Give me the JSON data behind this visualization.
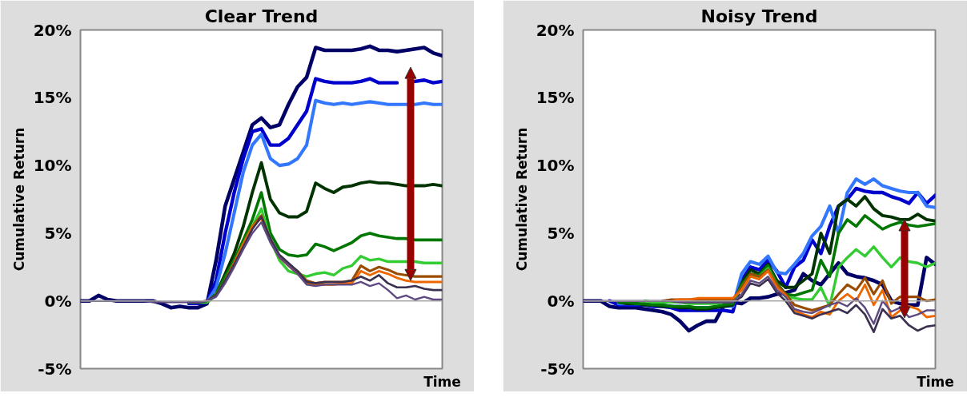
{
  "chart_data": [
    {
      "type": "line",
      "title": "Clear Trend",
      "xlabel": "Time",
      "ylabel": "Cumulative Return",
      "categories": [
        null,
        null,
        null,
        null,
        null,
        null,
        null,
        null,
        null,
        null,
        null,
        null,
        null,
        null,
        null,
        null,
        null,
        null,
        null,
        null,
        null,
        null,
        null,
        null,
        null,
        null,
        null,
        null,
        null,
        null,
        null,
        null,
        null,
        null,
        null,
        null,
        null,
        null,
        null,
        null,
        null
      ],
      "ylim": [
        -5,
        20
      ],
      "yticks": [
        {
          "value": -5,
          "label": "-5%"
        },
        {
          "value": 0,
          "label": "0%"
        },
        {
          "value": 5,
          "label": "5%"
        },
        {
          "value": 10,
          "label": "10%"
        },
        {
          "value": 15,
          "label": "15%"
        },
        {
          "value": 20,
          "label": "20%"
        }
      ],
      "tick_labels": "y",
      "line_style": "solid",
      "ref_lines": [
        {
          "axis": "y",
          "value": 0,
          "color": "#a6a6a6"
        }
      ],
      "series": [
        {
          "color": "#000066",
          "values": [
            0,
            0,
            0.4,
            0.1,
            0,
            0,
            0,
            0,
            0,
            -0.2,
            -0.5,
            -0.4,
            -0.5,
            -0.5,
            -0.2,
            3,
            7,
            9,
            11,
            13,
            13.5,
            12.8,
            13,
            14.5,
            15.8,
            16.5,
            18.7,
            18.5,
            18.5,
            18.5,
            18.5,
            18.6,
            18.8,
            18.5,
            18.5,
            18.4,
            18.5,
            18.6,
            18.7,
            18.3,
            18.1
          ]
        },
        {
          "color": "#0000cc",
          "values": [
            null,
            null,
            null,
            null,
            null,
            null,
            null,
            null,
            null,
            null,
            null,
            null,
            -0.2,
            -0.2,
            -0.1,
            1.5,
            5,
            8,
            10.5,
            12.5,
            12.7,
            11.5,
            11.5,
            12,
            13,
            14,
            16.4,
            16.2,
            16.1,
            16.1,
            16.1,
            16.2,
            16.4,
            16.1,
            16.1,
            16.1,
            null,
            16.2,
            16.3,
            16.1,
            16.2
          ]
        },
        {
          "color": "#3377ff",
          "values": [
            null,
            null,
            null,
            null,
            null,
            null,
            null,
            null,
            null,
            null,
            null,
            null,
            -0.1,
            -0.1,
            -0.1,
            1,
            3.5,
            6.5,
            9.5,
            11.5,
            12.3,
            10.5,
            10,
            10.1,
            10.5,
            11.5,
            14.8,
            14.6,
            14.5,
            14.6,
            14.5,
            14.6,
            14.7,
            14.6,
            14.5,
            14.5,
            14.5,
            14.5,
            14.6,
            14.5,
            14.5
          ]
        },
        {
          "color": "#003300",
          "values": [
            null,
            null,
            null,
            null,
            null,
            null,
            null,
            null,
            null,
            null,
            null,
            null,
            -0.1,
            -0.1,
            -0.1,
            0.5,
            2,
            3.5,
            5.5,
            8,
            10.2,
            7.5,
            6.5,
            6.2,
            6.2,
            6.6,
            8.7,
            8.3,
            8.0,
            8.4,
            8.5,
            8.7,
            8.8,
            8.7,
            8.7,
            8.6,
            8.5,
            8.5,
            8.5,
            8.6,
            8.5
          ]
        },
        {
          "color": "#007700",
          "values": [
            null,
            null,
            null,
            null,
            null,
            null,
            null,
            null,
            null,
            null,
            null,
            null,
            -0.1,
            -0.1,
            -0.1,
            0.5,
            1.8,
            3,
            4.5,
            6,
            8,
            5,
            3.8,
            3.4,
            3.3,
            3.4,
            4.2,
            4.0,
            3.7,
            4.0,
            4.3,
            4.8,
            5.0,
            4.8,
            4.7,
            4.6,
            4.6,
            4.5,
            4.5,
            4.5,
            4.5
          ]
        },
        {
          "color": "#33cc33",
          "values": [
            null,
            null,
            null,
            null,
            null,
            null,
            null,
            null,
            null,
            null,
            null,
            null,
            -0.1,
            -0.1,
            -0.1,
            0.4,
            1.5,
            2.8,
            4.2,
            5.5,
            6.8,
            4.5,
            3.0,
            2.2,
            2.0,
            1.8,
            2.0,
            2.1,
            1.9,
            2.4,
            2.6,
            3.3,
            3.0,
            3.1,
            2.9,
            2.9,
            2.9,
            2.9,
            2.8,
            2.8,
            2.8
          ]
        },
        {
          "color": "#994c00",
          "values": [
            null,
            null,
            null,
            null,
            null,
            null,
            null,
            null,
            null,
            null,
            null,
            null,
            -0.1,
            -0.1,
            0,
            0.4,
            1.5,
            2.8,
            4.2,
            5.5,
            6.3,
            4.5,
            3.3,
            2.7,
            2.2,
            1.5,
            1.3,
            1.4,
            1.4,
            1.4,
            1.5,
            2.6,
            2.2,
            2.5,
            2.3,
            2.0,
            1.9,
            1.8,
            1.8,
            1.8,
            1.8
          ]
        },
        {
          "color": "#ee6600",
          "values": [
            null,
            null,
            null,
            null,
            null,
            null,
            null,
            null,
            null,
            null,
            null,
            null,
            null,
            null,
            null,
            null,
            1.5,
            2.8,
            4.2,
            5.5,
            6.1,
            4.4,
            3.2,
            2.6,
            2.0,
            1.3,
            1.2,
            1.2,
            1.2,
            1.3,
            1.3,
            2.2,
            1.9,
            2.2,
            2.0,
            1.7,
            1.5,
            1.4,
            1.4,
            1.4,
            1.4
          ]
        },
        {
          "color": "#3c3050",
          "values": [
            null,
            null,
            null,
            null,
            null,
            null,
            null,
            null,
            null,
            null,
            null,
            null,
            -0.1,
            -0.1,
            0,
            0.4,
            1.5,
            2.7,
            4.0,
            5.3,
            6.2,
            4.6,
            3.4,
            2.8,
            2.2,
            1.4,
            1.3,
            1.4,
            1.4,
            1.4,
            1.5,
            1.8,
            1.5,
            1.9,
            1.3,
            1.0,
            1.0,
            1.1,
            0.9,
            0.8,
            0.8
          ]
        },
        {
          "color": "#5e4a80",
          "values": [
            0,
            0,
            0,
            0,
            0,
            0,
            0,
            0,
            -0.1,
            -0.1,
            -0.1,
            -0.1,
            -0.1,
            -0.1,
            0,
            0.3,
            1.3,
            2.5,
            3.8,
            5.0,
            5.8,
            4.3,
            3.2,
            2.6,
            2.0,
            1.2,
            1.1,
            1.2,
            1.2,
            1.2,
            1.2,
            1.4,
            1.1,
            1.3,
            0.8,
            0.2,
            0.4,
            0.1,
            0.3,
            0.1,
            0.1
          ]
        }
      ]
    },
    {
      "type": "line",
      "title": "Noisy Trend",
      "xlabel": "Time",
      "ylabel": "Cumulative Return",
      "categories": [
        null,
        null,
        null,
        null,
        null,
        null,
        null,
        null,
        null,
        null,
        null,
        null,
        null,
        null,
        null,
        null,
        null,
        null,
        null,
        null,
        null,
        null,
        null,
        null,
        null,
        null,
        null,
        null,
        null,
        null,
        null,
        null,
        null,
        null,
        null,
        null,
        null,
        null,
        null,
        null,
        null
      ],
      "ylim": [
        -5,
        20
      ],
      "yticks": [
        {
          "value": -5,
          "label": "-5%"
        },
        {
          "value": 0,
          "label": "0%"
        },
        {
          "value": 5,
          "label": "5%"
        },
        {
          "value": 10,
          "label": "10%"
        },
        {
          "value": 15,
          "label": "15%"
        },
        {
          "value": 20,
          "label": "20%"
        }
      ],
      "tick_labels": "y",
      "line_style": "solid",
      "ref_lines": [
        {
          "axis": "y",
          "value": 0,
          "color": "#a6a6a6"
        }
      ],
      "series": [
        {
          "color": "#000066",
          "values": [
            0,
            0,
            0,
            -0.4,
            -0.5,
            -0.5,
            -0.5,
            -0.6,
            -0.7,
            -0.8,
            -1.0,
            -1.5,
            -2.2,
            -1.8,
            -1.5,
            -1.5,
            -0.3,
            -0.1,
            -0.2,
            0.2,
            0.2,
            0.3,
            0.5,
            0.6,
            0.8,
            2.0,
            1.5,
            1.2,
            2.0,
            2.8,
            2.0,
            1.8,
            1.7,
            1.5,
            1.2,
            0.0,
            -0.2,
            -0.3,
            -0.3,
            3.2,
            2.7
          ]
        },
        {
          "color": "#0000cc",
          "values": [
            null,
            null,
            null,
            0,
            -0.3,
            -0.3,
            -0.3,
            -0.3,
            -0.4,
            -0.4,
            -0.5,
            -0.7,
            -0.7,
            -0.7,
            -0.7,
            -0.7,
            -0.7,
            -0.8,
            1.5,
            2.5,
            2.3,
            3.0,
            2.2,
            1.0,
            2.5,
            3.0,
            4.5,
            3.5,
            5.5,
            7.0,
            7.5,
            8.3,
            8.1,
            8.0,
            8.0,
            7.7,
            7.5,
            7.2,
            8.0,
            7.2,
            7.8
          ]
        },
        {
          "color": "#3377ff",
          "values": [
            null,
            null,
            null,
            null,
            -0.2,
            -0.2,
            -0.2,
            -0.3,
            -0.3,
            -0.3,
            -0.4,
            -0.4,
            -0.5,
            -0.5,
            -0.5,
            -0.5,
            -0.4,
            -0.4,
            2.0,
            2.9,
            2.7,
            3.3,
            2.1,
            2.0,
            2.7,
            3.5,
            4.8,
            5.5,
            7.0,
            5.0,
            8.0,
            9.0,
            8.6,
            9.0,
            8.5,
            8.3,
            8.1,
            8.0,
            8.0,
            7.0,
            6.9
          ]
        },
        {
          "color": "#003300",
          "values": [
            null,
            null,
            null,
            null,
            -0.1,
            -0.2,
            -0.2,
            -0.3,
            -0.3,
            -0.4,
            -0.4,
            -0.5,
            -0.5,
            -0.6,
            -0.6,
            -0.5,
            -0.4,
            -0.3,
            1.3,
            2.3,
            2.0,
            2.7,
            1.5,
            1.0,
            1.0,
            1.5,
            2.0,
            5.0,
            3.5,
            7.0,
            7.5,
            7.0,
            7.7,
            6.8,
            6.3,
            6.2,
            6.0,
            6.0,
            6.4,
            6.0,
            5.9
          ]
        },
        {
          "color": "#007700",
          "values": [
            null,
            null,
            null,
            null,
            -0.1,
            -0.1,
            -0.2,
            -0.2,
            -0.3,
            -0.3,
            -0.4,
            -0.4,
            -0.4,
            -0.5,
            -0.5,
            -0.4,
            -0.3,
            -0.2,
            1.2,
            2.0,
            1.9,
            2.6,
            1.3,
            0.5,
            0.4,
            0.6,
            0.8,
            3.0,
            1.8,
            5.0,
            6.0,
            5.5,
            6.3,
            5.8,
            5.3,
            5.6,
            5.8,
            5.6,
            5.5,
            5.6,
            5.7
          ]
        },
        {
          "color": "#33cc33",
          "values": [
            null,
            null,
            null,
            null,
            null,
            null,
            null,
            0,
            -0.1,
            -0.1,
            -0.1,
            -0.1,
            -0.2,
            -0.2,
            -0.2,
            -0.2,
            -0.1,
            0,
            1.0,
            1.9,
            1.8,
            2.4,
            1.2,
            0.3,
            0.2,
            0.1,
            0.1,
            1.0,
            -0.4,
            2.5,
            3.2,
            3.8,
            3.3,
            4.0,
            3.2,
            2.5,
            3.2,
            2.9,
            2.8,
            2.5,
            2.8
          ]
        },
        {
          "color": "#994c00",
          "values": [
            null,
            null,
            null,
            null,
            null,
            null,
            null,
            null,
            null,
            0,
            0.1,
            0.1,
            0.1,
            0.1,
            0.1,
            0.1,
            0.1,
            0.1,
            1.0,
            2.0,
            1.8,
            2.3,
            1.2,
            0.5,
            -0.3,
            -0.5,
            -0.7,
            -0.5,
            -0.3,
            0.5,
            1.2,
            0.8,
            1.7,
            0.5,
            1.5,
            -0.2,
            0.3,
            0.3,
            0.3,
            0.0,
            0.1
          ]
        },
        {
          "color": "#ee6600",
          "values": [
            null,
            null,
            null,
            null,
            null,
            null,
            null,
            null,
            null,
            null,
            0,
            0.1,
            0.1,
            0.2,
            0.2,
            0.2,
            0.2,
            0.2,
            0.8,
            1.8,
            1.6,
            2.2,
            1.0,
            0.4,
            -0.7,
            -1.0,
            -1.2,
            -0.8,
            -1.0,
            0.0,
            0.5,
            0.0,
            1.2,
            -0.3,
            0.8,
            -1.2,
            -0.7,
            -0.4,
            -0.6,
            -1.2,
            -1.1
          ]
        },
        {
          "color": "#3c3050",
          "values": [
            null,
            null,
            null,
            null,
            null,
            null,
            null,
            null,
            null,
            null,
            0,
            -0.1,
            -0.1,
            -0.1,
            -0.1,
            -0.1,
            -0.1,
            -0.1,
            0.3,
            1.3,
            1.1,
            1.6,
            0.6,
            0.0,
            -0.9,
            -1.1,
            -1.3,
            -1.0,
            -0.8,
            -0.6,
            -0.9,
            -0.3,
            -1.0,
            -2.3,
            -0.6,
            -1.3,
            -1.1,
            -1.8,
            -2.2,
            -1.9,
            -1.8
          ]
        },
        {
          "color": "#5e4a80",
          "values": [
            0,
            0,
            0,
            0,
            0,
            0,
            0,
            0,
            0,
            0,
            0,
            -0.1,
            -0.1,
            -0.1,
            -0.1,
            -0.1,
            -0.1,
            -0.1,
            0.5,
            1.5,
            1.3,
            1.8,
            0.8,
            0.3,
            -0.6,
            -0.8,
            -0.9,
            -0.6,
            -0.3,
            -0.1,
            -0.4,
            0.2,
            -0.5,
            -1.7,
            0.0,
            -0.8,
            -0.5,
            -1.2,
            -1.0,
            -0.7,
            -0.7
          ]
        }
      ]
    }
  ]
}
